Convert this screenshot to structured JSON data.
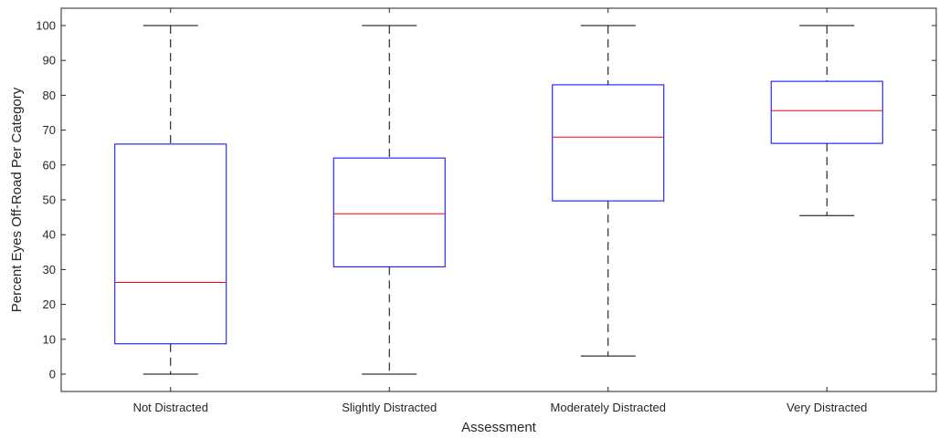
{
  "chart_data": {
    "type": "boxplot",
    "title": "",
    "xlabel": "Assessment",
    "ylabel": "Percent Eyes Off-Road Per Category",
    "ylim": [
      -5,
      105
    ],
    "yticks": [
      0,
      10,
      20,
      30,
      40,
      50,
      60,
      70,
      80,
      90,
      100
    ],
    "grid": false,
    "categories": [
      "Not Distracted",
      "Slightly Distracted",
      "Moderately Distracted",
      "Very Distracted"
    ],
    "boxes": [
      {
        "category": "Not Distracted",
        "whisker_low": 0,
        "q1": 8.7,
        "median": 26.3,
        "q3": 66,
        "whisker_high": 100
      },
      {
        "category": "Slightly Distracted",
        "whisker_low": 0,
        "q1": 30.8,
        "median": 46,
        "q3": 62,
        "whisker_high": 100
      },
      {
        "category": "Moderately Distracted",
        "whisker_low": 5.2,
        "q1": 49.7,
        "median": 68,
        "q3": 83,
        "whisker_high": 100
      },
      {
        "category": "Very Distracted",
        "whisker_low": 45.5,
        "q1": 66.2,
        "median": 75.6,
        "q3": 84,
        "whisker_high": 100
      }
    ],
    "colors": {
      "box": "#0000ff",
      "median": "#ff0000",
      "whisker": "#000000",
      "axis": "#262626"
    }
  }
}
